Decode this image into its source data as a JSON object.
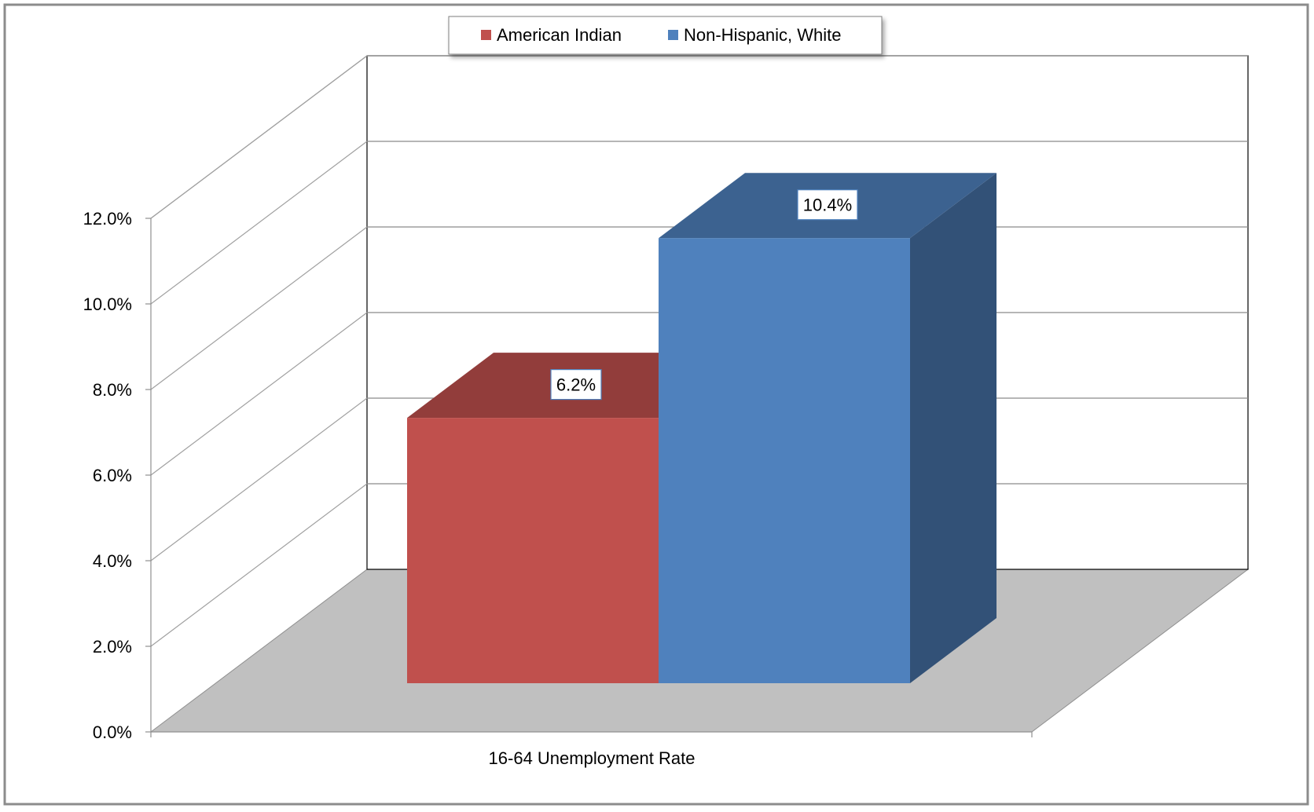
{
  "chart_data": {
    "type": "bar",
    "categories": [
      "16-64 Unemployment Rate"
    ],
    "series": [
      {
        "name": "American Indian",
        "values": [
          6.2
        ],
        "data_label": "6.2%",
        "color": "#C0504D"
      },
      {
        "name": "Non-Hispanic, White",
        "values": [
          10.4
        ],
        "data_label": "10.4%",
        "color": "#4F81BD"
      }
    ],
    "y_ticks": [
      "0.0%",
      "2.0%",
      "4.0%",
      "6.0%",
      "8.0%",
      "10.0%",
      "12.0%"
    ],
    "ylim": [
      0,
      12
    ],
    "legend_position": "top-center",
    "grid": true,
    "three_d": true,
    "title": "",
    "xlabel": "",
    "ylabel": ""
  }
}
